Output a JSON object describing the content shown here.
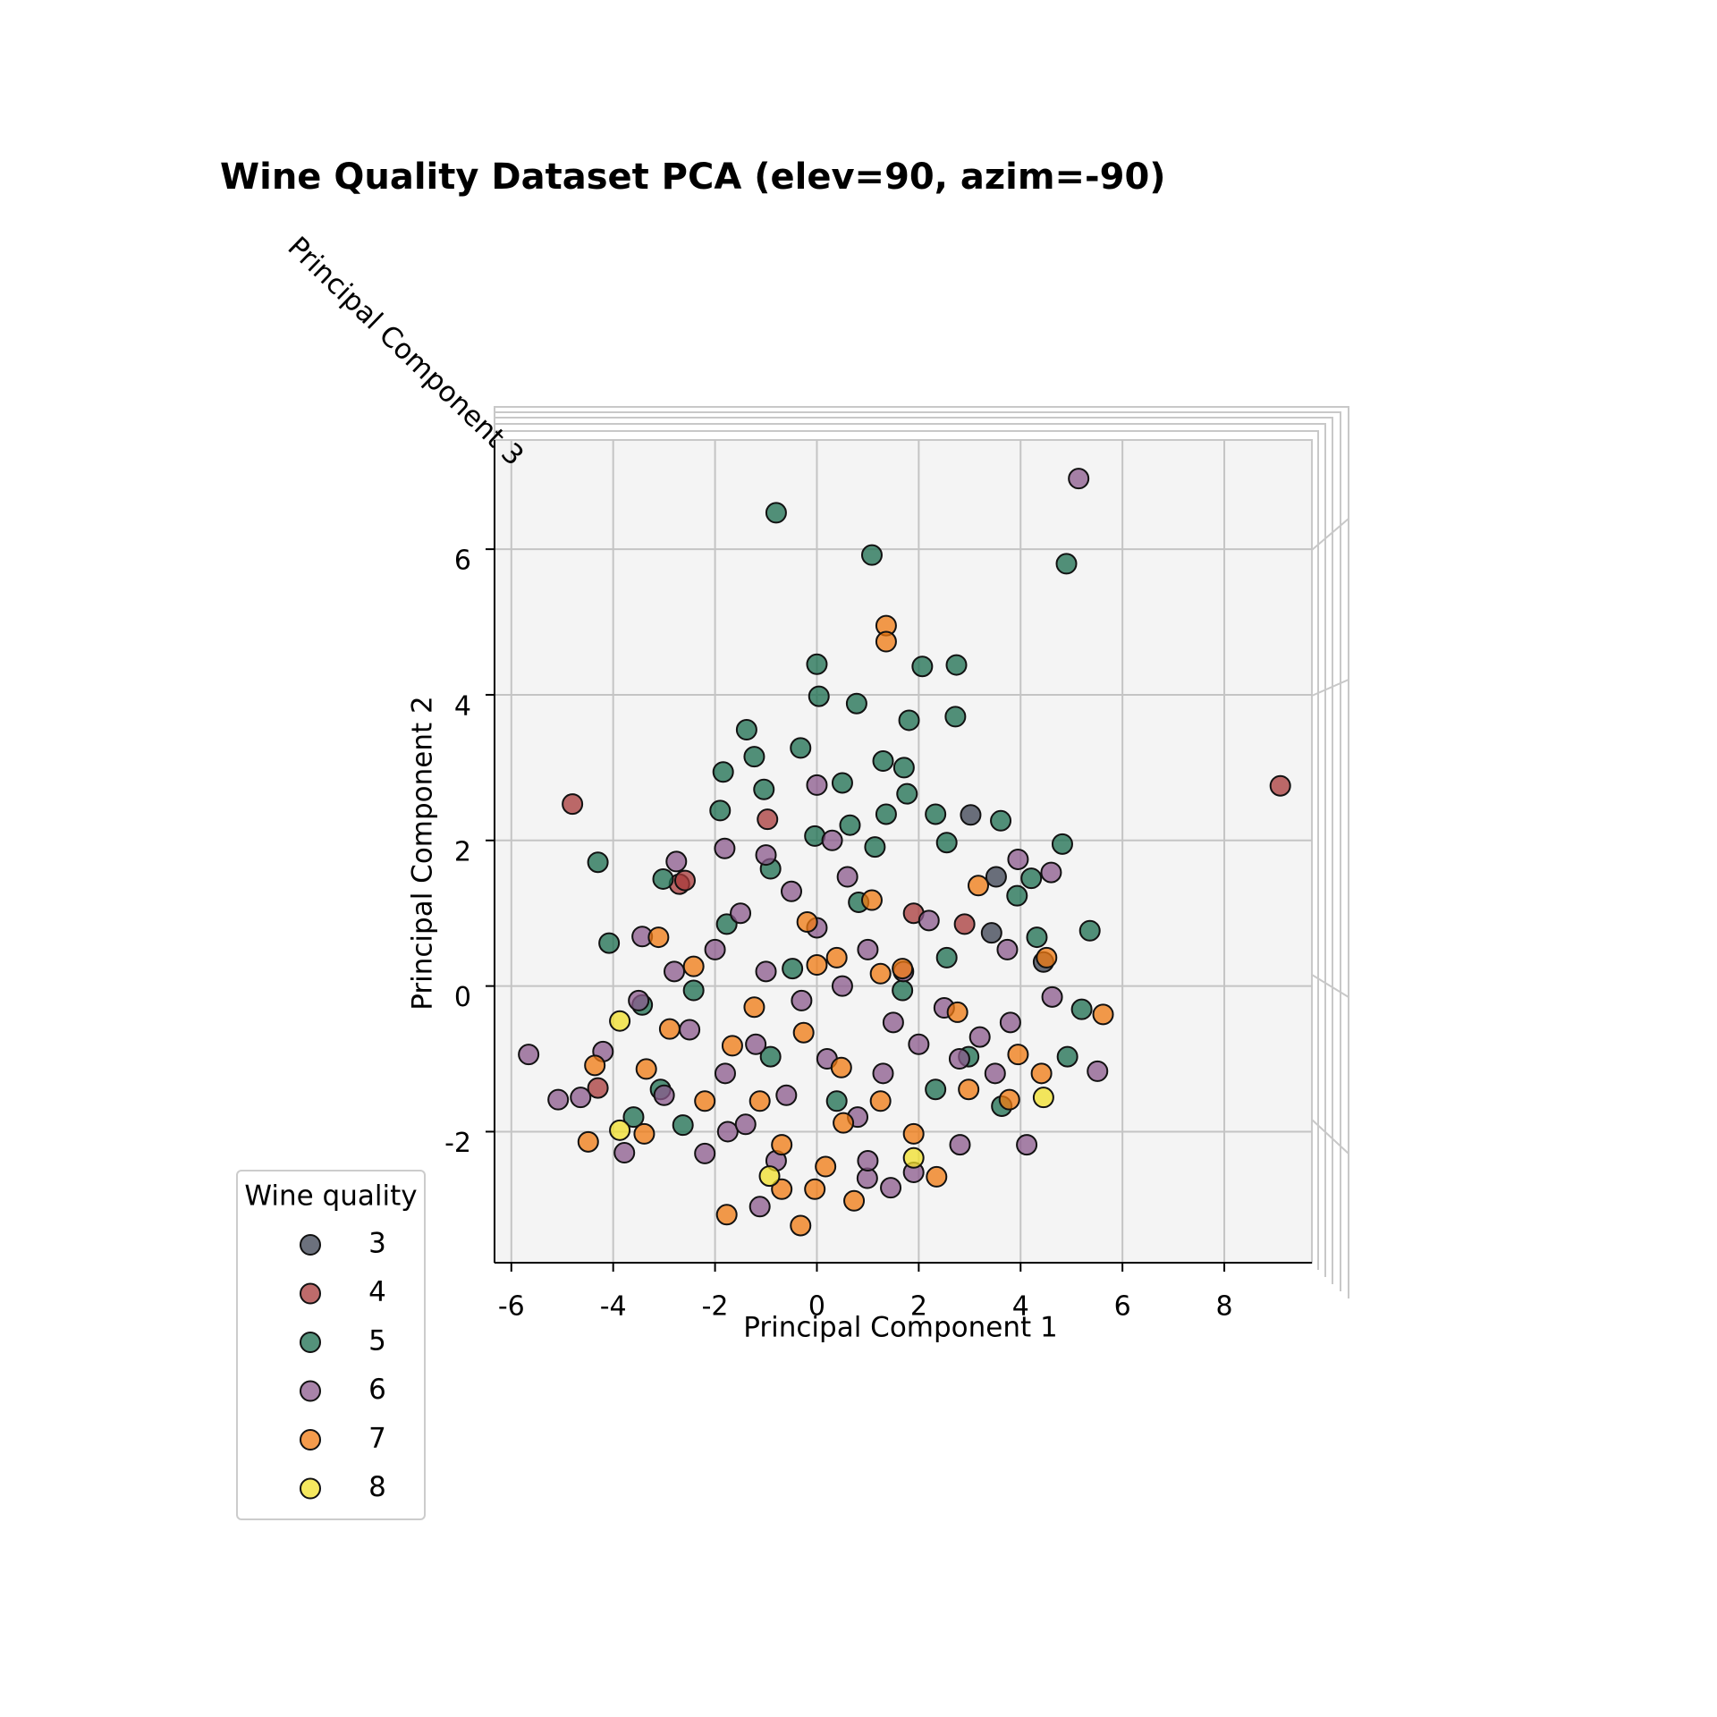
{
  "chart_data": {
    "type": "scatter",
    "title": "Wine Quality Dataset PCA (elev=90, azim=-90)",
    "x_label": "Principal Component 1",
    "y_label": "Principal Component 2",
    "z_label": "Principal Component 3",
    "legend_title": "Wine quality",
    "legend_position": "lower left",
    "grid": true,
    "xlim": [
      -6.33,
      9.72
    ],
    "ylim": [
      -3.8,
      7.5
    ],
    "xticks": [
      -6,
      -4,
      -2,
      0,
      2,
      4,
      6,
      8
    ],
    "yticks": [
      -2,
      0,
      2,
      4,
      6
    ],
    "series": [
      {
        "name": "3",
        "color": "#3b4252",
        "x": [
          3.43,
          3.52,
          3.02,
          4.45
        ],
        "values": [
          0.73,
          1.5,
          2.35,
          0.33
        ]
      },
      {
        "name": "4",
        "color": "#a83a3a",
        "x": [
          -4.8,
          9.1,
          1.9,
          2.9,
          -2.7,
          -4.3,
          -0.97,
          -2.59
        ],
        "values": [
          2.5,
          2.75,
          1.0,
          0.85,
          1.4,
          -1.4,
          2.29,
          1.45
        ]
      },
      {
        "name": "5",
        "color": "#1b6e4f",
        "x": [
          -0.8,
          4.9,
          1.08,
          0,
          2.07,
          2.74,
          0.04,
          0.78,
          1.81,
          2.72,
          -1.38,
          -1.23,
          -0.32,
          -1.84,
          1.3,
          1.71,
          1.77,
          3.61,
          4.82,
          -4.3,
          -4.08,
          5.36,
          4.21,
          3.93,
          4.32,
          4.92,
          -3.02,
          5.2,
          -3.6,
          -2.63,
          -1.9,
          -1.04,
          0.5,
          0.65,
          1.14,
          2.33,
          2.55,
          -0.91,
          0.82,
          -1.77,
          -2.42,
          -0.48,
          1.68,
          2.55,
          2.98,
          -3.43,
          -3.07,
          -0.91,
          2.33,
          0.39,
          3.63,
          1.36,
          -0.04
        ],
        "values": [
          6.5,
          5.8,
          5.92,
          4.42,
          4.39,
          4.41,
          3.98,
          3.88,
          3.65,
          3.7,
          3.52,
          3.15,
          3.27,
          2.94,
          3.09,
          3.0,
          2.64,
          2.27,
          1.95,
          1.7,
          0.59,
          0.76,
          1.48,
          1.24,
          0.67,
          -0.97,
          1.47,
          -0.32,
          -1.8,
          -1.91,
          2.41,
          2.7,
          2.79,
          2.21,
          1.91,
          2.36,
          1.97,
          1.61,
          1.15,
          0.85,
          -0.06,
          0.24,
          -0.06,
          0.39,
          -0.97,
          -0.26,
          -1.42,
          -0.97,
          -1.42,
          -1.58,
          -1.65,
          2.36,
          2.06
        ]
      },
      {
        "name": "6",
        "color": "#8b5a8c",
        "x": [
          5.14,
          0,
          3.95,
          4.6,
          3.74,
          4.62,
          5.51,
          4.12,
          -5.66,
          -5.08,
          -4.64,
          -3.78,
          -1.12,
          1.45,
          -2.76,
          -1.81,
          -3.43,
          -2.2,
          -1.75,
          0.99,
          1.9,
          2.81,
          -2,
          -1.5,
          -1,
          -0.5,
          0,
          0.5,
          1,
          1.5,
          2,
          2.5,
          -2.5,
          -1.8,
          -1.2,
          -0.6,
          0.2,
          0.8,
          1.3,
          2.8,
          3.2,
          -3,
          -1,
          0.3,
          -0.3,
          1.7,
          -2.8,
          3.5,
          0.6,
          -1.4,
          2.2,
          -0.8,
          3.8,
          1.0,
          -3.5,
          -4.2
        ],
        "values": [
          6.97,
          2.76,
          1.74,
          1.56,
          0.5,
          -0.15,
          -1.17,
          -2.18,
          -0.94,
          -1.56,
          -1.53,
          -2.29,
          -3.03,
          -2.77,
          1.71,
          1.89,
          0.68,
          -2.3,
          -2.0,
          -2.64,
          -2.56,
          -2.18,
          0.5,
          1,
          0.2,
          1.3,
          0.8,
          0,
          0.5,
          -0.5,
          -0.8,
          -0.3,
          -0.6,
          -1.2,
          -0.8,
          -1.5,
          -1.0,
          -1.8,
          -1.2,
          -1.0,
          -0.7,
          -1.5,
          1.8,
          2.0,
          -0.2,
          0.2,
          0.2,
          -1.2,
          1.5,
          -1.9,
          0.9,
          -2.4,
          -0.5,
          -2.4,
          -0.2,
          -0.9
        ]
      },
      {
        "name": "7",
        "color": "#f07a10",
        "x": [
          1.36,
          1.36,
          3.17,
          4.51,
          5.62,
          -3.11,
          -2.42,
          -4.49,
          -4.36,
          -1.77,
          -0.32,
          0.73,
          2.35,
          3.78,
          4.41,
          3.95,
          -0.19,
          0,
          1.08,
          2.76,
          -2.89,
          -3.35,
          -1.66,
          -1.23,
          -0.26,
          0.48,
          -0.69,
          0.17,
          0.52,
          1.25,
          1.9,
          -1.12,
          -2.2,
          -3.39,
          2.98,
          0.39,
          1.68,
          -0.69,
          -0.04,
          1.25
        ],
        "values": [
          4.95,
          4.73,
          1.38,
          0.39,
          -0.39,
          0.67,
          0.27,
          -2.14,
          -1.09,
          -3.14,
          -3.29,
          -2.95,
          -2.62,
          -1.56,
          -1.2,
          -0.94,
          0.88,
          0.29,
          1.18,
          -0.36,
          -0.59,
          -1.14,
          -0.82,
          -0.29,
          -0.64,
          -1.12,
          -2.18,
          -2.48,
          -1.88,
          -1.58,
          -2.03,
          -1.58,
          -1.58,
          -2.03,
          -1.42,
          0.39,
          0.24,
          -2.79,
          -2.79,
          0.17
        ]
      },
      {
        "name": "8",
        "color": "#f2e02a",
        "x": [
          -3.87,
          -3.87,
          -0.93,
          1.9,
          4.45
        ],
        "values": [
          -0.48,
          -1.98,
          -2.61,
          -2.36,
          -1.53
        ]
      }
    ]
  }
}
